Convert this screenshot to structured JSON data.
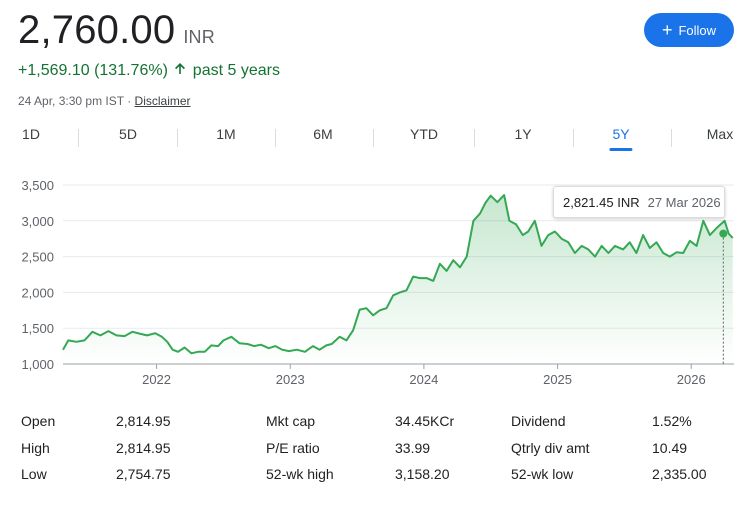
{
  "header": {
    "price": "2,760.00",
    "currency": "INR",
    "change": "+1,569.10 (131.76%)",
    "change_period": "past 5 years",
    "timestamp": "24 Apr, 3:30 pm IST",
    "separator": "·",
    "disclaimer": "Disclaimer",
    "follow_label": "Follow"
  },
  "tabs": [
    "1D",
    "5D",
    "1M",
    "6M",
    "YTD",
    "1Y",
    "5Y",
    "Max"
  ],
  "active_tab": "5Y",
  "tooltip": {
    "value": "2,821.45 INR",
    "date": "27 Mar 2026"
  },
  "chart_data": {
    "type": "area",
    "xlabel": "",
    "ylabel": "",
    "ylim": [
      1000,
      3500
    ],
    "yticks": [
      "1,000",
      "1,500",
      "2,000",
      "2,500",
      "3,000",
      "3,500"
    ],
    "ytick_values": [
      1000,
      1500,
      2000,
      2500,
      3000,
      3500
    ],
    "xticks": [
      "2022",
      "2023",
      "2024",
      "2025",
      "2026"
    ],
    "xtick_values": [
      2022.0,
      2023.0,
      2024.0,
      2025.0,
      2026.0
    ],
    "xlim": [
      2021.3,
      2026.32
    ],
    "line_color": "#34a853",
    "series": [
      {
        "name": "",
        "x": [
          2021.3,
          2021.34,
          2021.4,
          2021.46,
          2021.52,
          2021.58,
          2021.64,
          2021.7,
          2021.76,
          2021.82,
          2021.88,
          2021.93,
          2021.99,
          2022.04,
          2022.08,
          2022.12,
          2022.16,
          2022.21,
          2022.26,
          2022.31,
          2022.36,
          2022.41,
          2022.46,
          2022.5,
          2022.56,
          2022.62,
          2022.68,
          2022.73,
          2022.78,
          2022.84,
          2022.89,
          2022.94,
          2022.99,
          2023.05,
          2023.11,
          2023.17,
          2023.22,
          2023.27,
          2023.31,
          2023.37,
          2023.42,
          2023.47,
          2023.52,
          2023.57,
          2023.62,
          2023.67,
          2023.72,
          2023.77,
          2023.82,
          2023.87,
          2023.92,
          2023.97,
          2024.02,
          2024.07,
          2024.12,
          2024.17,
          2024.22,
          2024.27,
          2024.32,
          2024.37,
          2024.42,
          2024.46,
          2024.5,
          2024.55,
          2024.6,
          2024.64,
          2024.69,
          2024.74,
          2024.78,
          2024.83,
          2024.88,
          2024.93,
          2024.98,
          2025.03,
          2025.08,
          2025.13,
          2025.18,
          2025.23,
          2025.28,
          2025.33,
          2025.38,
          2025.43,
          2025.49,
          2025.54,
          2025.59,
          2025.64,
          2025.69,
          2025.74,
          2025.79,
          2025.84,
          2025.89,
          2025.94,
          2025.99,
          2026.04,
          2026.09,
          2026.14,
          2026.19,
          2026.22,
          2026.25,
          2026.28,
          2026.31
        ],
        "values": [
          1200,
          1330,
          1310,
          1330,
          1450,
          1400,
          1460,
          1400,
          1390,
          1450,
          1420,
          1400,
          1430,
          1380,
          1310,
          1200,
          1170,
          1230,
          1150,
          1170,
          1170,
          1260,
          1250,
          1330,
          1380,
          1290,
          1280,
          1250,
          1270,
          1220,
          1250,
          1200,
          1180,
          1200,
          1170,
          1250,
          1200,
          1260,
          1280,
          1380,
          1330,
          1470,
          1760,
          1780,
          1680,
          1750,
          1780,
          1960,
          2000,
          2030,
          2220,
          2200,
          2200,
          2160,
          2400,
          2300,
          2450,
          2350,
          2500,
          3000,
          3100,
          3250,
          3350,
          3260,
          3360,
          3000,
          2950,
          2800,
          2850,
          3000,
          2650,
          2800,
          2850,
          2750,
          2700,
          2550,
          2650,
          2600,
          2500,
          2650,
          2550,
          2650,
          2600,
          2700,
          2550,
          2800,
          2620,
          2700,
          2550,
          2500,
          2560,
          2550,
          2720,
          2650,
          3000,
          2800,
          2900,
          2950,
          3000,
          2820,
          2760
        ]
      }
    ],
    "highlight_point": {
      "x": 2026.24,
      "y": 2821.45
    }
  },
  "stats": [
    {
      "label": "Open",
      "value": "2,814.95"
    },
    {
      "label": "High",
      "value": "2,814.95"
    },
    {
      "label": "Low",
      "value": "2,754.75"
    },
    {
      "label": "Mkt cap",
      "value": "34.45KCr"
    },
    {
      "label": "P/E ratio",
      "value": "33.99"
    },
    {
      "label": "52-wk high",
      "value": "3,158.20"
    },
    {
      "label": "Dividend",
      "value": "1.52%"
    },
    {
      "label": "Qtrly div amt",
      "value": "10.49"
    },
    {
      "label": "52-wk low",
      "value": "2,335.00"
    }
  ]
}
